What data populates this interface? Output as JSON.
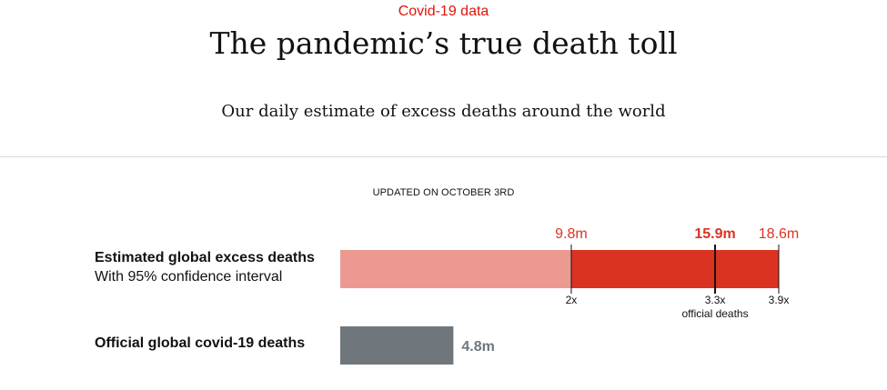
{
  "header": {
    "kicker": "Covid-19 data",
    "title": "The pandemic’s true death toll",
    "subtitle": "Our daily estimate of excess deaths around the world",
    "updated": "UPDATED ON OCTOBER 3RD"
  },
  "rows": {
    "estimated": {
      "label": "Estimated global excess deaths",
      "sublabel": "With 95% confidence interval"
    },
    "official": {
      "label": "Official global covid-19 deaths"
    }
  },
  "chart_data": {
    "type": "bar",
    "unit": "m",
    "xlim": [
      0,
      18.6
    ],
    "series": [
      {
        "estimate": 15.9,
        "lower": 9.8,
        "upper": 18.6,
        "estimate_label": "15.9m",
        "lower_label": "9.8m",
        "upper_label": "18.6m",
        "multiples": [
          {
            "value": 9.8,
            "label": "2x"
          },
          {
            "value": 15.9,
            "label": "3.3x"
          },
          {
            "value": 18.6,
            "label": "3.9x"
          }
        ],
        "multiples_caption": "official deaths"
      },
      {
        "value": 4.8,
        "value_label": "4.8m"
      }
    ],
    "colors": {
      "ci_light": "#ec9a91",
      "ci_dark": "#db3322",
      "official": "#6f777d",
      "label_red": "#db3322",
      "tick": "#121212"
    }
  }
}
